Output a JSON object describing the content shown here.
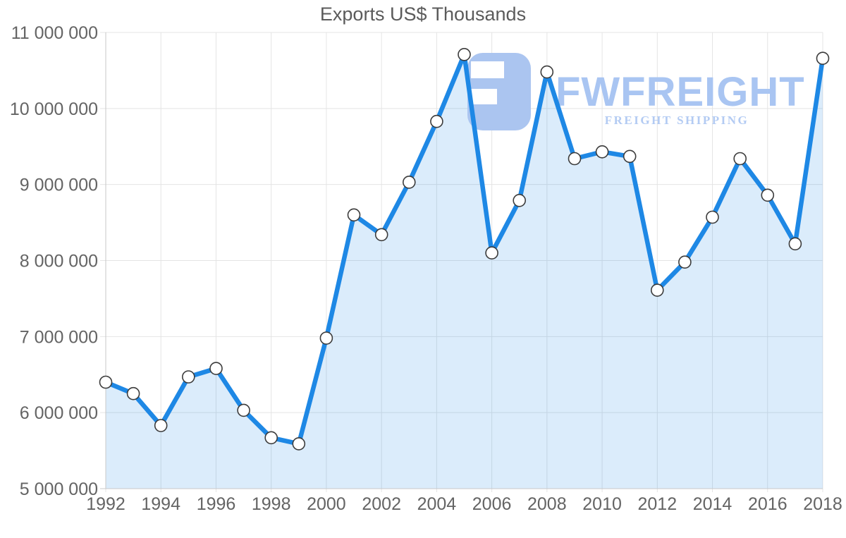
{
  "page": {
    "background": "#ffffff"
  },
  "chart_data": {
    "type": "area",
    "title": "Exports US$ Thousands",
    "x": [
      1992,
      1993,
      1994,
      1995,
      1996,
      1997,
      1998,
      1999,
      2000,
      2001,
      2002,
      2003,
      2004,
      2005,
      2006,
      2007,
      2008,
      2009,
      2010,
      2011,
      2012,
      2013,
      2014,
      2015,
      2016,
      2017,
      2018
    ],
    "values": [
      6400000,
      6250000,
      5830000,
      6470000,
      6580000,
      6030000,
      5670000,
      5590000,
      6980000,
      8600000,
      8340000,
      9030000,
      9830000,
      10710000,
      8100000,
      8790000,
      10480000,
      9340000,
      9430000,
      9370000,
      7610000,
      7980000,
      8570000,
      9340000,
      8860000,
      8220000,
      10660000
    ],
    "xlim": [
      1992,
      2018
    ],
    "ylim": [
      5000000,
      11000000
    ],
    "x_ticks": [
      1992,
      1994,
      1996,
      1998,
      2000,
      2002,
      2004,
      2006,
      2008,
      2010,
      2012,
      2014,
      2016,
      2018
    ],
    "x_tick_labels": [
      "1992",
      "1994",
      "1996",
      "1998",
      "2000",
      "2002",
      "2004",
      "2006",
      "2008",
      "2010",
      "2012",
      "2014",
      "2016",
      "2018"
    ],
    "y_ticks": [
      5000000,
      6000000,
      7000000,
      8000000,
      9000000,
      10000000,
      11000000
    ],
    "y_tick_labels": [
      "5 000 000",
      "6 000 000",
      "7 000 000",
      "8 000 000",
      "9 000 000",
      "10 000 000",
      "11 000 000"
    ],
    "grid": true,
    "legend_position": "none",
    "marker": "circle"
  },
  "watermark": {
    "brand": "FWFREIGHT",
    "tagline": "FREIGHT SHIPPING"
  },
  "colors": {
    "line": "#1e88e5",
    "area_fill": "rgba(30,136,229,0.16)",
    "gridline": "#e4e4e4",
    "axis": "#c9c9c9",
    "tick_text": "#646464",
    "title_text": "#5b5b5b",
    "marker_fill": "#ffffff",
    "marker_stroke": "#3c3c3c",
    "watermark_blue": "#abc5f0",
    "watermark_bar": "#ffffff",
    "watermark_text": "#a9c5f2",
    "watermark_tagline": "#b3cbf3"
  }
}
